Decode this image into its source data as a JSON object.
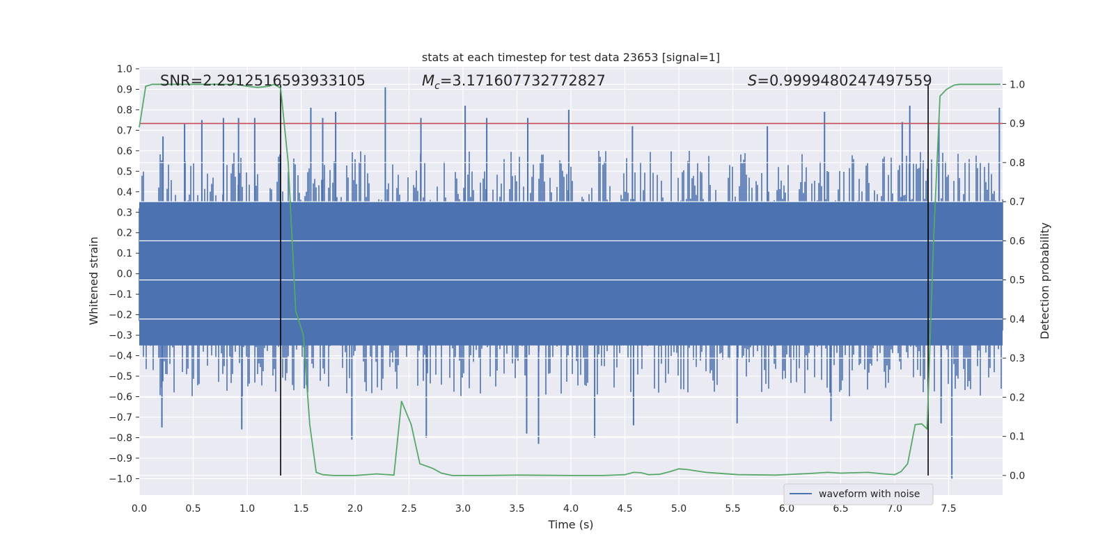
{
  "chart_data": {
    "type": "line",
    "title": "stats at each timestep for test data 23653 [signal=1]",
    "xlabel": "Time (s)",
    "ylabel_left": "Whitened strain",
    "ylabel_right": "Detection probability",
    "xlim": [
      0.0,
      8.0
    ],
    "ylim_left": [
      -1.08,
      1.01
    ],
    "ylim_right": [
      -0.05,
      1.045
    ],
    "x_ticks": [
      "0.0",
      "0.5",
      "1.0",
      "1.5",
      "2.0",
      "2.5",
      "3.0",
      "3.5",
      "4.0",
      "4.5",
      "5.0",
      "5.5",
      "6.0",
      "6.5",
      "7.0",
      "7.5"
    ],
    "y_ticks_left": [
      "1.0",
      "0.9",
      "0.8",
      "0.7",
      "0.6",
      "0.5",
      "0.4",
      "0.3",
      "0.2",
      "0.1",
      "0.0",
      "−0.1",
      "−0.2",
      "−0.3",
      "−0.4",
      "−0.5",
      "−0.6",
      "−0.7",
      "−0.8",
      "−0.9",
      "−1.0"
    ],
    "y_ticks_right": [
      "1.0",
      "0.9",
      "0.8",
      "0.7",
      "0.6",
      "0.5",
      "0.4",
      "0.3",
      "0.2",
      "0.1",
      "0.0"
    ],
    "annotations": {
      "snr": "SNR=2.2912516593933105",
      "mc_prefix": "M",
      "mc_sub": "c",
      "mc_value": "=3.171607732772827",
      "s_prefix": "S",
      "s_value": "=0.9999480247497559"
    },
    "legend": {
      "location": "lower-right",
      "entries": [
        "waveform with noise"
      ]
    },
    "threshold_line": {
      "axis": "right",
      "value": 0.9,
      "color": "#c44e52"
    },
    "vertical_lines": [
      1.31,
      7.31
    ],
    "waveform": {
      "name": "waveform with noise",
      "color": "#4c72b0",
      "core_band": [
        -0.35,
        0.35
      ],
      "spike_peaks": [
        {
          "x": 0.22,
          "y": 0.67
        },
        {
          "x": 0.42,
          "y": 0.73
        },
        {
          "x": 0.58,
          "y": 0.75
        },
        {
          "x": 0.78,
          "y": 0.76
        },
        {
          "x": 0.92,
          "y": 0.76
        },
        {
          "x": 1.07,
          "y": 0.76
        },
        {
          "x": 1.59,
          "y": 0.81
        },
        {
          "x": 1.7,
          "y": 0.76
        },
        {
          "x": 1.82,
          "y": 0.79
        },
        {
          "x": 2.28,
          "y": 0.91
        },
        {
          "x": 2.61,
          "y": 0.76
        },
        {
          "x": 3.02,
          "y": 0.82
        },
        {
          "x": 3.22,
          "y": 0.76
        },
        {
          "x": 3.6,
          "y": 0.76
        },
        {
          "x": 3.98,
          "y": 0.8
        },
        {
          "x": 4.57,
          "y": 0.72
        },
        {
          "x": 5.82,
          "y": 0.72
        },
        {
          "x": 6.35,
          "y": 0.79
        },
        {
          "x": 7.07,
          "y": 0.74
        },
        {
          "x": 7.14,
          "y": 0.82
        },
        {
          "x": 7.41,
          "y": 0.75
        },
        {
          "x": 7.97,
          "y": 0.81
        }
      ],
      "spike_troughs": [
        {
          "x": 0.21,
          "y": -0.75
        },
        {
          "x": 0.95,
          "y": -0.76
        },
        {
          "x": 1.53,
          "y": -0.56
        },
        {
          "x": 1.97,
          "y": -0.81
        },
        {
          "x": 2.66,
          "y": -0.8
        },
        {
          "x": 3.59,
          "y": -0.78
        },
        {
          "x": 3.7,
          "y": -0.83
        },
        {
          "x": 4.22,
          "y": -0.8
        },
        {
          "x": 4.58,
          "y": -0.74
        },
        {
          "x": 5.54,
          "y": -0.73
        },
        {
          "x": 6.41,
          "y": -0.72
        },
        {
          "x": 7.43,
          "y": -0.73
        },
        {
          "x": 7.53,
          "y": -1.0
        }
      ]
    },
    "detection_probability": {
      "name": "detection probability",
      "color": "#55a868",
      "x": [
        0.0,
        0.06,
        0.12,
        0.5,
        0.9,
        1.0,
        1.1,
        1.2,
        1.25,
        1.31,
        1.38,
        1.45,
        1.52,
        1.58,
        1.64,
        1.7,
        1.8,
        2.0,
        2.2,
        2.36,
        2.43,
        2.52,
        2.6,
        2.72,
        2.8,
        2.9,
        3.2,
        3.5,
        4.0,
        4.3,
        4.5,
        4.58,
        4.65,
        4.72,
        4.82,
        4.92,
        5.0,
        5.08,
        5.25,
        5.55,
        5.9,
        6.2,
        6.38,
        6.5,
        6.75,
        6.9,
        7.0,
        7.06,
        7.12,
        7.19,
        7.25,
        7.3,
        7.36,
        7.42,
        7.48,
        7.55,
        7.6,
        7.75,
        7.98
      ],
      "y": [
        0.89,
        0.995,
        1.0,
        1.0,
        1.0,
        0.995,
        0.992,
        0.995,
        1.0,
        0.99,
        0.8,
        0.42,
        0.36,
        0.13,
        0.008,
        0.002,
        0.0,
        0.0,
        0.004,
        0.001,
        0.19,
        0.13,
        0.03,
        0.018,
        0.006,
        0.0,
        0.0,
        0.001,
        0.0,
        0.0,
        0.002,
        0.008,
        0.007,
        0.002,
        0.003,
        0.01,
        0.017,
        0.015,
        0.008,
        0.002,
        0.001,
        0.005,
        0.008,
        0.006,
        0.008,
        0.004,
        0.002,
        0.01,
        0.03,
        0.13,
        0.132,
        0.119,
        0.6,
        0.97,
        0.987,
        0.998,
        1.0,
        1.0,
        1.0
      ]
    }
  }
}
